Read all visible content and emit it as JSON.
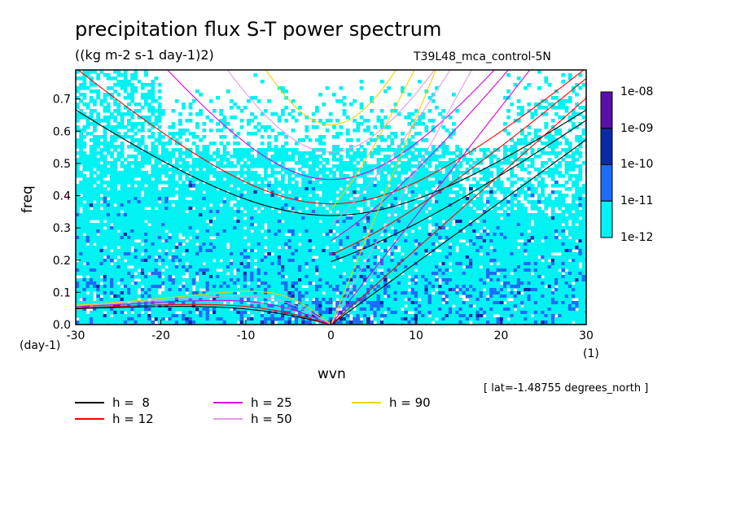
{
  "title": "precipitation flux S-T power spectrum",
  "subtitle": "((kg m-2 s-1 day-1)2)",
  "run_name": "T39L48_mca_control-5N",
  "lat_note": "[ lat=-1.48755 degrees_north ]",
  "colors": {
    "level1": "#00f2f2",
    "level2": "#1e6cfa",
    "level3": "#0a2aa8",
    "level4": "#5a10a8",
    "h8": "#000000",
    "h12": "#ff0000",
    "h25": "#dd00dd",
    "h50": "#e49ae4",
    "h90": "#f0d000"
  },
  "chart_data": {
    "type": "heatmap",
    "title": "precipitation flux S-T power spectrum",
    "subtitle": "((kg m-2 s-1 day-1)2)",
    "xlabel": "wvn",
    "ylabel": "freq",
    "x_unit": "(1)",
    "y_unit": "(day-1)",
    "xlim": [
      -30,
      30
    ],
    "ylim": [
      0,
      0.79
    ],
    "x_ticks": [
      -30,
      -20,
      -10,
      0,
      10,
      20,
      30
    ],
    "x_tick_labels": [
      "-30",
      "-20",
      "-10",
      "0",
      "10",
      "20",
      "30"
    ],
    "y_ticks": [
      0.0,
      0.1,
      0.2,
      0.3,
      0.4,
      0.5,
      0.6,
      0.7
    ],
    "y_tick_labels": [
      "0.0",
      "0.1",
      "0.2",
      "0.3",
      "0.4",
      "0.5",
      "0.6",
      "0.7"
    ],
    "colorbar": {
      "scale": "log",
      "labels": [
        "1e-08",
        "1e-09",
        "1e-10",
        "1e-11",
        "1e-12"
      ],
      "levels": [
        1e-12,
        1e-11,
        1e-10,
        1e-09,
        1e-08
      ]
    },
    "dispersion_curves": {
      "equivalent_depths_m": [
        8,
        12,
        25,
        50,
        90
      ],
      "legend": [
        {
          "label": "h =  8",
          "color_key": "h8"
        },
        {
          "label": "h = 12",
          "color_key": "h12"
        },
        {
          "label": "h = 25",
          "color_key": "h25"
        },
        {
          "label": "h = 50",
          "color_key": "h50"
        },
        {
          "label": "h = 90",
          "color_key": "h90"
        }
      ],
      "curve_types": [
        "kelvin",
        "equatorial_rossby",
        "inertio_gravity",
        "mixed_rossby_gravity"
      ]
    },
    "power_pattern": {
      "description_level_near_origin": 1e-10,
      "dominant_level": 1e-11,
      "background_above_freq": 0.5
    }
  }
}
